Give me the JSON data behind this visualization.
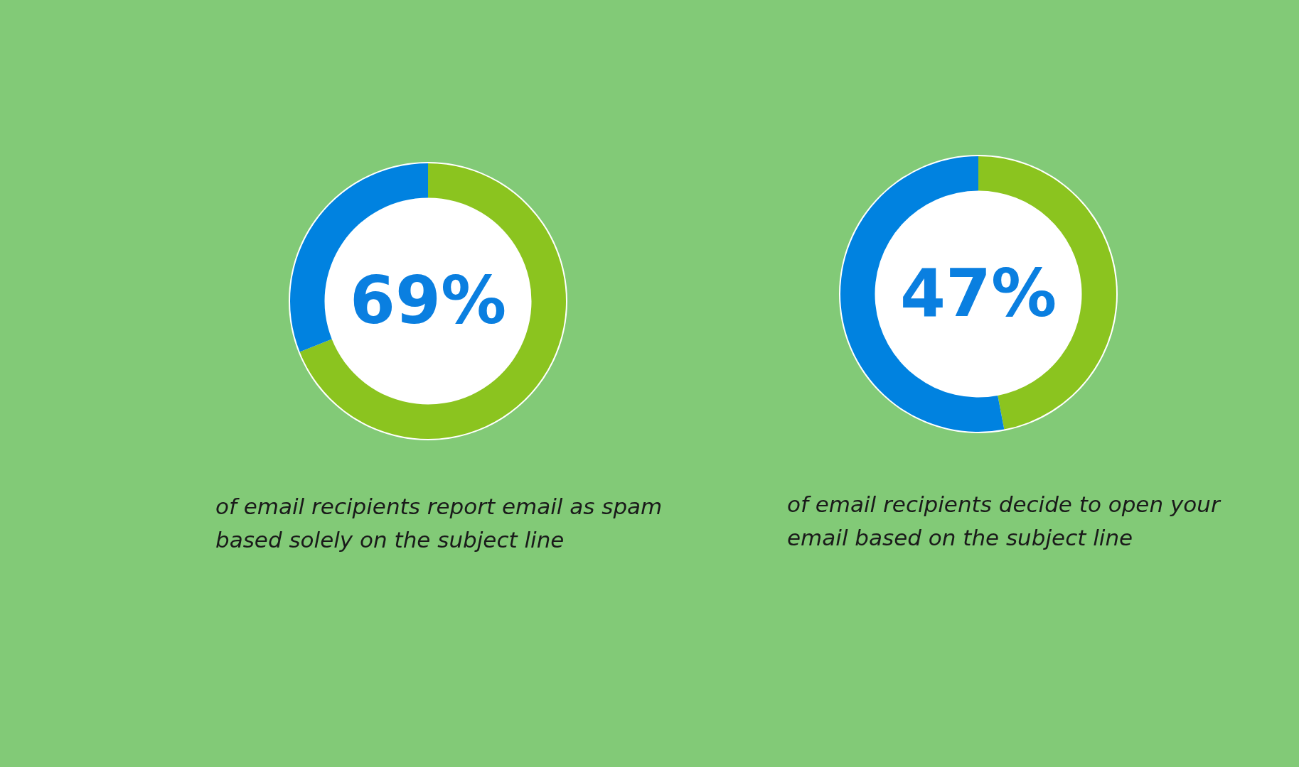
{
  "chart_data": [
    {
      "type": "donut",
      "categories": [
        null,
        null
      ],
      "values": [
        69,
        31
      ],
      "colors": [
        "#8bc41f",
        "#0082e0"
      ],
      "annotations": [
        "69%",
        "of email recipients report email as spam based solely on the subject line"
      ]
    },
    {
      "type": "donut",
      "categories": [
        null,
        null
      ],
      "values": [
        47,
        53
      ],
      "colors": [
        "#8bc41f",
        "#0082e0"
      ],
      "annotations": [
        "47%",
        "of email recipients decide to open your email based on the subject line"
      ]
    }
  ]
}
